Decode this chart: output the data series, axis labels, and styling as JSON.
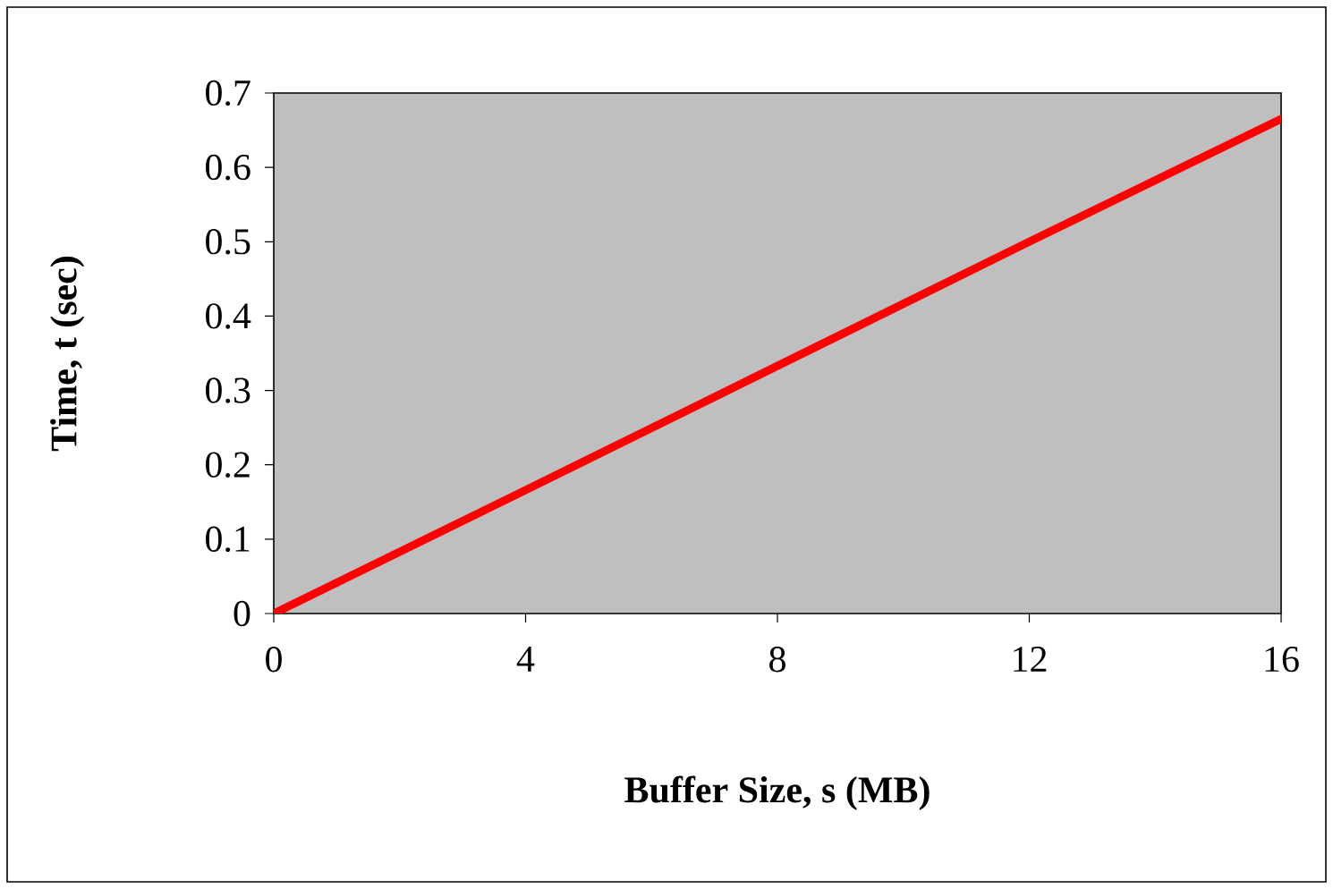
{
  "chart_data": {
    "type": "line",
    "xlabel": "Buffer Size, s (MB)",
    "ylabel": "Time, t (sec)",
    "x": [
      0,
      4,
      8,
      12,
      16
    ],
    "series": [
      {
        "color": "#ff0000",
        "values": [
          0,
          0.166,
          0.333,
          0.5,
          0.665
        ]
      }
    ],
    "xlim": [
      0,
      16
    ],
    "xticks": [
      0,
      4,
      8,
      12,
      16
    ],
    "ylim": [
      0,
      0.7
    ],
    "yticks": [
      0,
      0.1,
      0.2,
      0.3,
      0.4,
      0.5,
      0.6,
      0.7
    ],
    "grid": false,
    "marker": "none",
    "line_style": "solid"
  }
}
